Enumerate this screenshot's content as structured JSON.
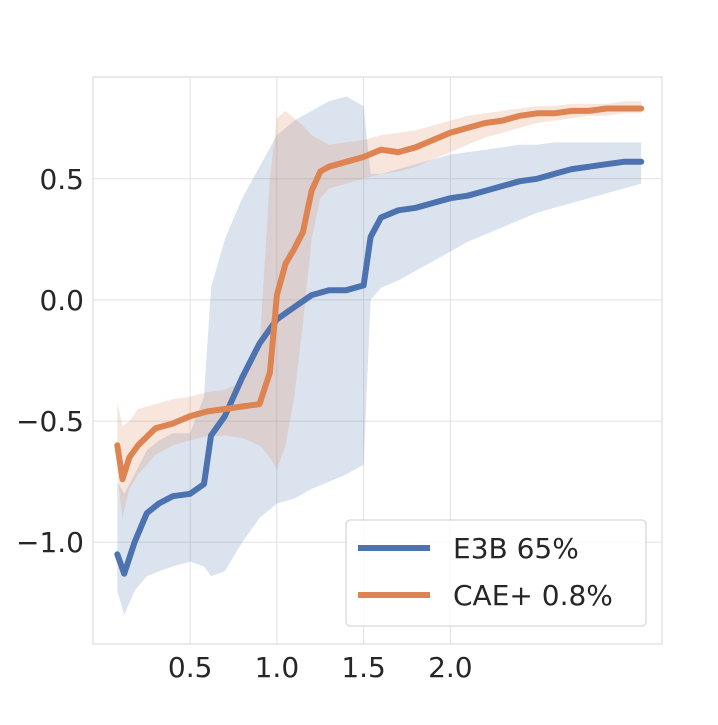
{
  "chart_data": {
    "type": "line",
    "title": "",
    "xlabel": "",
    "ylabel": "",
    "xlim": [
      -0.06,
      3.22
    ],
    "ylim": [
      -1.42,
      0.92
    ],
    "xticks": [
      0.5,
      1.0,
      1.5,
      2.0
    ],
    "xtick_labels": [
      "0.5",
      "1.0",
      "1.5",
      "2.0"
    ],
    "yticks": [
      0.5,
      0.0,
      -0.5,
      -1.0
    ],
    "ytick_labels": [
      "0.5",
      "0.0",
      "−0.5",
      "−1.0"
    ],
    "grid": true,
    "legend": "lower-right",
    "series": [
      {
        "name": "E3B 65%",
        "color": "#4c72b0",
        "x": [
          0.08,
          0.12,
          0.18,
          0.25,
          0.32,
          0.4,
          0.5,
          0.58,
          0.62,
          0.7,
          0.8,
          0.9,
          1.0,
          1.1,
          1.2,
          1.3,
          1.4,
          1.5,
          1.54,
          1.6,
          1.7,
          1.8,
          1.9,
          2.0,
          2.1,
          2.2,
          2.3,
          2.4,
          2.5,
          2.6,
          2.7,
          2.8,
          2.9,
          3.0,
          3.1
        ],
        "values": [
          -1.05,
          -1.13,
          -1.0,
          -0.88,
          -0.84,
          -0.81,
          -0.8,
          -0.76,
          -0.56,
          -0.48,
          -0.32,
          -0.18,
          -0.08,
          -0.03,
          0.02,
          0.04,
          0.04,
          0.06,
          0.26,
          0.34,
          0.37,
          0.38,
          0.4,
          0.42,
          0.43,
          0.45,
          0.47,
          0.49,
          0.5,
          0.52,
          0.54,
          0.55,
          0.56,
          0.57,
          0.57
        ],
        "upper": [
          -0.75,
          -0.8,
          -0.72,
          -0.62,
          -0.58,
          -0.55,
          -0.55,
          -0.4,
          0.05,
          0.25,
          0.42,
          0.55,
          0.68,
          0.74,
          0.78,
          0.82,
          0.84,
          0.8,
          0.52,
          0.52,
          0.54,
          0.56,
          0.58,
          0.6,
          0.61,
          0.62,
          0.63,
          0.64,
          0.64,
          0.65,
          0.65,
          0.65,
          0.65,
          0.65,
          0.65
        ],
        "lower": [
          -1.2,
          -1.3,
          -1.2,
          -1.14,
          -1.12,
          -1.1,
          -1.08,
          -1.1,
          -1.14,
          -1.12,
          -1.0,
          -0.9,
          -0.84,
          -0.82,
          -0.78,
          -0.75,
          -0.72,
          -0.68,
          0.0,
          0.05,
          0.08,
          0.12,
          0.16,
          0.2,
          0.24,
          0.27,
          0.3,
          0.33,
          0.36,
          0.38,
          0.4,
          0.42,
          0.44,
          0.46,
          0.48
        ]
      },
      {
        "name": "CAE+ 0.8%",
        "color": "#dd8452",
        "x": [
          0.08,
          0.11,
          0.15,
          0.2,
          0.3,
          0.4,
          0.5,
          0.6,
          0.7,
          0.8,
          0.9,
          0.96,
          1.0,
          1.05,
          1.1,
          1.15,
          1.2,
          1.25,
          1.3,
          1.4,
          1.5,
          1.6,
          1.7,
          1.8,
          1.9,
          2.0,
          2.1,
          2.2,
          2.3,
          2.4,
          2.5,
          2.6,
          2.7,
          2.8,
          2.9,
          3.0,
          3.1
        ],
        "values": [
          -0.6,
          -0.74,
          -0.65,
          -0.6,
          -0.53,
          -0.51,
          -0.48,
          -0.46,
          -0.45,
          -0.44,
          -0.43,
          -0.3,
          0.02,
          0.15,
          0.21,
          0.28,
          0.45,
          0.53,
          0.55,
          0.57,
          0.59,
          0.62,
          0.61,
          0.63,
          0.66,
          0.69,
          0.71,
          0.73,
          0.74,
          0.76,
          0.77,
          0.77,
          0.78,
          0.78,
          0.79,
          0.79,
          0.79
        ],
        "upper": [
          -0.42,
          -0.52,
          -0.5,
          -0.45,
          -0.43,
          -0.41,
          -0.4,
          -0.38,
          -0.37,
          -0.34,
          -0.2,
          0.5,
          0.75,
          0.78,
          0.75,
          0.72,
          0.68,
          0.66,
          0.64,
          0.65,
          0.66,
          0.68,
          0.69,
          0.7,
          0.72,
          0.74,
          0.76,
          0.77,
          0.78,
          0.79,
          0.8,
          0.8,
          0.81,
          0.81,
          0.81,
          0.82,
          0.82
        ],
        "lower": [
          -0.72,
          -0.9,
          -0.78,
          -0.72,
          -0.64,
          -0.6,
          -0.58,
          -0.56,
          -0.56,
          -0.57,
          -0.6,
          -0.65,
          -0.7,
          -0.6,
          -0.4,
          -0.1,
          0.25,
          0.42,
          0.46,
          0.48,
          0.5,
          0.52,
          0.53,
          0.55,
          0.58,
          0.61,
          0.64,
          0.67,
          0.69,
          0.71,
          0.73,
          0.74,
          0.75,
          0.76,
          0.76,
          0.77,
          0.77
        ]
      }
    ]
  }
}
